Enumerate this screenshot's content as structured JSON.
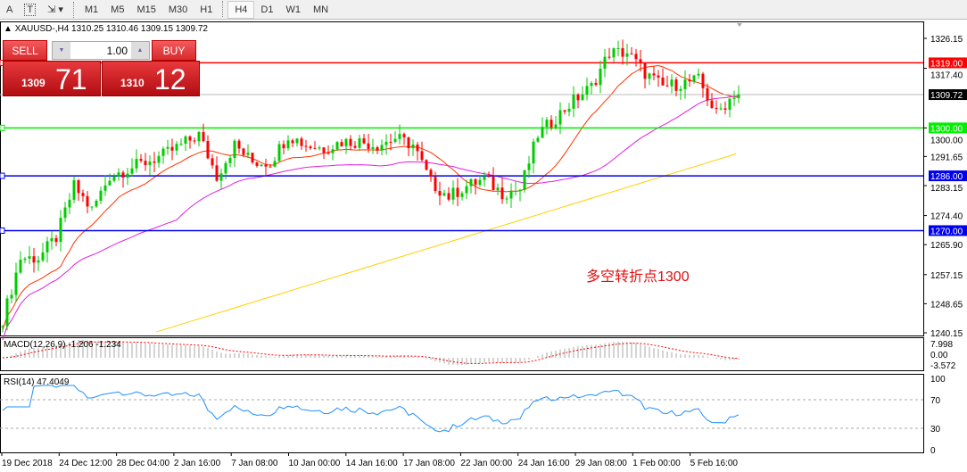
{
  "toolbar": {
    "tools": [
      "A",
      "T"
    ],
    "timeframes": [
      "M1",
      "M5",
      "M15",
      "M30",
      "H1",
      "H4",
      "D1",
      "W1",
      "MN"
    ],
    "active": "H4"
  },
  "info": {
    "symbol_line": "XAUUSD-,H4  1310.25 1310.46 1309.15 1309.72"
  },
  "trade": {
    "sell_label": "SELL",
    "buy_label": "BUY",
    "lots": "1.00",
    "sell_big": "1309",
    "sell_small": "71",
    "buy_big": "1310",
    "buy_small": "12",
    "color": "#d82a2e"
  },
  "annotation": "多空转折点1300",
  "colors": {
    "bull": "#00cc00",
    "bear": "#ff0000",
    "ma_fast": "#ff3300",
    "ma_mid": "#e020e0",
    "ma_slow": "#ffd000",
    "macd_signal": "#ff0000",
    "rsi": "#1e90ff"
  },
  "chart_data": {
    "type": "candlestick",
    "symbol": "XAUUSD-",
    "timeframe": "H4",
    "ylim": [
      1240.15,
      1326.15
    ],
    "y_ticks": [
      "1326.15",
      "1317.40",
      "1309.72",
      "1300.00",
      "1291.65",
      "1283.15",
      "1274.40",
      "1265.90",
      "1257.15",
      "1248.65",
      "1240.15"
    ],
    "approx_close_path": [
      1244,
      1262,
      1262,
      1268,
      1283,
      1276,
      1286,
      1288,
      1290,
      1292,
      1295,
      1298,
      1286,
      1295,
      1290,
      1290,
      1298,
      1295,
      1294,
      1296,
      1296,
      1295,
      1297,
      1295,
      1284,
      1280,
      1283,
      1285,
      1281,
      1282,
      1298,
      1303,
      1308,
      1312,
      1322,
      1322,
      1316,
      1312,
      1313,
      1314,
      1304,
      1310
    ],
    "current_price": "1309.72",
    "levels": [
      {
        "price": "1319.00",
        "color": "#ff0000"
      },
      {
        "price": "1300.00",
        "color": "#00ee00"
      },
      {
        "price": "1286.00",
        "color": "#0000ee"
      },
      {
        "price": "1270.00",
        "color": "#0000ee"
      }
    ],
    "x_ticks": [
      "19 Dec 2018",
      "24 Dec 12:00",
      "28 Dec 04:00",
      "2 Jan 16:00",
      "7 Jan 08:00",
      "10 Jan 00:00",
      "14 Jan 16:00",
      "17 Jan 08:00",
      "22 Jan 00:00",
      "24 Jan 16:00",
      "29 Jan 08:00",
      "1 Feb 00:00",
      "5 Feb 16:00"
    ],
    "macd": {
      "label": "MACD(12,26,9) -1.206 -1.234",
      "ticks": [
        "7.998",
        "0.00",
        "-3.572"
      ]
    },
    "rsi": {
      "label": "RSI(14) 47.4049",
      "ticks": [
        "100",
        "70",
        "30",
        "0"
      ],
      "value": 47.4049
    }
  }
}
